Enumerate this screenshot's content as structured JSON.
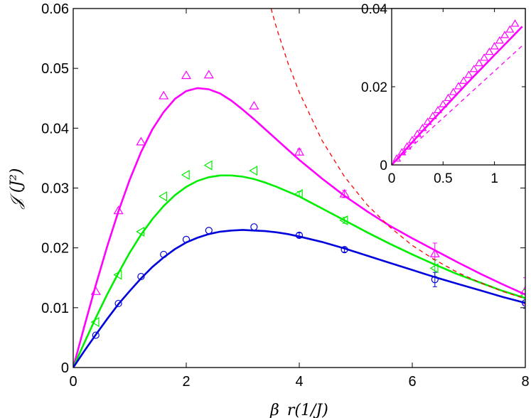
{
  "chart_data": [
    {
      "type": "scatter",
      "title": "",
      "xlabel": "β_r(1/J)",
      "ylabel": "𝒥 (J²)",
      "xlim": [
        0,
        8
      ],
      "ylim": [
        0,
        0.06
      ],
      "xticks": [
        "0",
        "2",
        "4",
        "6",
        "8"
      ],
      "yticks": [
        "0",
        "0.01",
        "0.02",
        "0.03",
        "0.04",
        "0.05",
        "0.06"
      ],
      "grid": false,
      "legend": "none",
      "colors": {
        "magenta": "#ff00ff",
        "green": "#00ee00",
        "blue": "#0000dd",
        "red": "#ff0000"
      },
      "series": [
        {
          "kind": "markers",
          "marker": "triangle-up",
          "color": "#ff00ff",
          "x": [
            0.4,
            0.8,
            1.2,
            1.6,
            2.0,
            2.4,
            3.2,
            4.0,
            4.8,
            6.4,
            8.0
          ],
          "y": [
            0.0127,
            0.0262,
            0.0377,
            0.0454,
            0.0488,
            0.0489,
            0.0437,
            0.036,
            0.029,
            0.019,
            0.0128
          ],
          "err": [
            0,
            0,
            0,
            0,
            0,
            0,
            0,
            0.0005,
            0.0006,
            0.0018,
            0.0022
          ]
        },
        {
          "kind": "markers",
          "marker": "triangle-left",
          "color": "#00ee00",
          "x": [
            0.4,
            0.8,
            1.2,
            1.6,
            2.0,
            2.4,
            3.2,
            4.0,
            4.8,
            6.4,
            8.0
          ],
          "y": [
            0.0076,
            0.0155,
            0.0227,
            0.0286,
            0.0322,
            0.0338,
            0.0329,
            0.029,
            0.0246,
            0.0166,
            0.012
          ],
          "err": [
            0,
            0,
            0,
            0,
            0,
            0,
            0,
            0.0004,
            0.0005,
            0.0014,
            0.001
          ]
        },
        {
          "kind": "markers",
          "marker": "circle",
          "color": "#0000dd",
          "x": [
            0.4,
            0.8,
            1.2,
            1.6,
            2.0,
            2.4,
            3.2,
            4.0,
            4.8,
            6.4,
            8.0
          ],
          "y": [
            0.0054,
            0.0107,
            0.0152,
            0.0189,
            0.0214,
            0.0229,
            0.0235,
            0.0221,
            0.0197,
            0.0147,
            0.0108
          ],
          "err": [
            0,
            0,
            0,
            0,
            0,
            0,
            0,
            0.0004,
            0.0004,
            0.0012,
            0.0009
          ]
        },
        {
          "kind": "line",
          "color": "#ff00ff",
          "x": [
            0,
            0.2,
            0.4,
            0.6,
            0.8,
            1.0,
            1.2,
            1.4,
            1.6,
            1.8,
            2.0,
            2.2,
            2.4,
            2.6,
            2.8,
            3.0,
            3.2,
            3.4,
            3.6,
            3.8,
            4.0,
            4.4,
            4.8,
            5.2,
            5.6,
            6.0,
            6.4,
            6.8,
            7.2,
            7.6,
            8.0
          ],
          "y": [
            0,
            0.007,
            0.0138,
            0.0202,
            0.0261,
            0.0314,
            0.036,
            0.0398,
            0.0427,
            0.0449,
            0.0462,
            0.0467,
            0.0465,
            0.0458,
            0.0446,
            0.0431,
            0.0415,
            0.0398,
            0.0381,
            0.0364,
            0.0347,
            0.0316,
            0.0287,
            0.0261,
            0.0237,
            0.0216,
            0.0196,
            0.0176,
            0.0157,
            0.0139,
            0.0122
          ]
        },
        {
          "kind": "line",
          "color": "#00ee00",
          "x": [
            0,
            0.2,
            0.4,
            0.6,
            0.8,
            1.0,
            1.2,
            1.4,
            1.6,
            1.8,
            2.0,
            2.2,
            2.4,
            2.6,
            2.8,
            3.0,
            3.2,
            3.4,
            3.6,
            3.8,
            4.0,
            4.4,
            4.8,
            5.2,
            5.6,
            6.0,
            6.4,
            6.8,
            7.2,
            7.6,
            8.0
          ],
          "y": [
            0,
            0.0042,
            0.0083,
            0.0122,
            0.0158,
            0.0192,
            0.0222,
            0.0248,
            0.027,
            0.0288,
            0.0302,
            0.0312,
            0.0318,
            0.0321,
            0.0321,
            0.0319,
            0.0315,
            0.0309,
            0.0302,
            0.0294,
            0.0286,
            0.0266,
            0.0246,
            0.0226,
            0.0207,
            0.0189,
            0.0172,
            0.0156,
            0.0142,
            0.0128,
            0.0116
          ]
        },
        {
          "kind": "line",
          "color": "#0000dd",
          "x": [
            0,
            0.2,
            0.4,
            0.6,
            0.8,
            1.0,
            1.2,
            1.4,
            1.6,
            1.8,
            2.0,
            2.2,
            2.4,
            2.6,
            2.8,
            3.0,
            3.2,
            3.4,
            3.6,
            3.8,
            4.0,
            4.4,
            4.8,
            5.2,
            5.6,
            6.0,
            6.4,
            6.8,
            7.2,
            7.6,
            8.0
          ],
          "y": [
            0,
            0.0028,
            0.0055,
            0.0081,
            0.0106,
            0.0128,
            0.0149,
            0.0168,
            0.0184,
            0.0198,
            0.0209,
            0.0217,
            0.0223,
            0.0227,
            0.0229,
            0.023,
            0.0229,
            0.0228,
            0.0226,
            0.0223,
            0.0219,
            0.021,
            0.0199,
            0.0187,
            0.0175,
            0.0163,
            0.0151,
            0.014,
            0.0129,
            0.0118,
            0.0108
          ]
        },
        {
          "kind": "dashed-line",
          "color": "#ff0000",
          "x": [
            3.5,
            3.6,
            3.8,
            4.0,
            4.4,
            4.8,
            5.2,
            5.6,
            6.0,
            6.4,
            6.8,
            7.2,
            7.6,
            8.0
          ],
          "y": [
            0.06,
            0.0567,
            0.0509,
            0.046,
            0.038,
            0.0319,
            0.0272,
            0.0235,
            0.0204,
            0.018,
            0.0159,
            0.0142,
            0.0127,
            0.0115
          ]
        }
      ]
    },
    {
      "type": "scatter",
      "title": "",
      "xlabel": "",
      "ylabel": "",
      "xlim": [
        0,
        1.3
      ],
      "ylim": [
        0,
        0.04
      ],
      "xticks": [
        "0",
        "0.5",
        "1"
      ],
      "yticks": [
        "0",
        "0.02",
        "0.04"
      ],
      "grid": false,
      "legend": "none",
      "series": [
        {
          "kind": "markers",
          "marker": "triangle-up",
          "color": "#ff00ff",
          "x": [
            0.05,
            0.1,
            0.15,
            0.2,
            0.25,
            0.3,
            0.35,
            0.4,
            0.45,
            0.5,
            0.55,
            0.6,
            0.65,
            0.7,
            0.75,
            0.8,
            0.85,
            0.9,
            0.95,
            1.0,
            1.05,
            1.1,
            1.15,
            1.2
          ],
          "y": [
            0.0016,
            0.0032,
            0.0047,
            0.0063,
            0.0079,
            0.0094,
            0.011,
            0.0125,
            0.014,
            0.0155,
            0.0171,
            0.0186,
            0.0201,
            0.0215,
            0.023,
            0.0245,
            0.026,
            0.0274,
            0.0289,
            0.0303,
            0.0318,
            0.0332,
            0.0346,
            0.0361
          ]
        },
        {
          "kind": "line",
          "color": "#ff00ff",
          "x": [
            0,
            0.1,
            0.2,
            0.3,
            0.4,
            0.5,
            0.6,
            0.7,
            0.8,
            0.9,
            1.0,
            1.1,
            1.2,
            1.27
          ],
          "y": [
            0,
            0.0029,
            0.0058,
            0.0087,
            0.0115,
            0.0143,
            0.0171,
            0.0199,
            0.0227,
            0.0254,
            0.0281,
            0.0308,
            0.0335,
            0.0354
          ]
        },
        {
          "kind": "dashed-line",
          "color": "#ff00ff",
          "x": [
            0,
            0.2,
            0.4,
            0.6,
            0.8,
            1.0,
            1.2,
            1.27
          ],
          "y": [
            0,
            0.0048,
            0.0096,
            0.0144,
            0.0192,
            0.024,
            0.0288,
            0.0305
          ]
        }
      ]
    }
  ]
}
